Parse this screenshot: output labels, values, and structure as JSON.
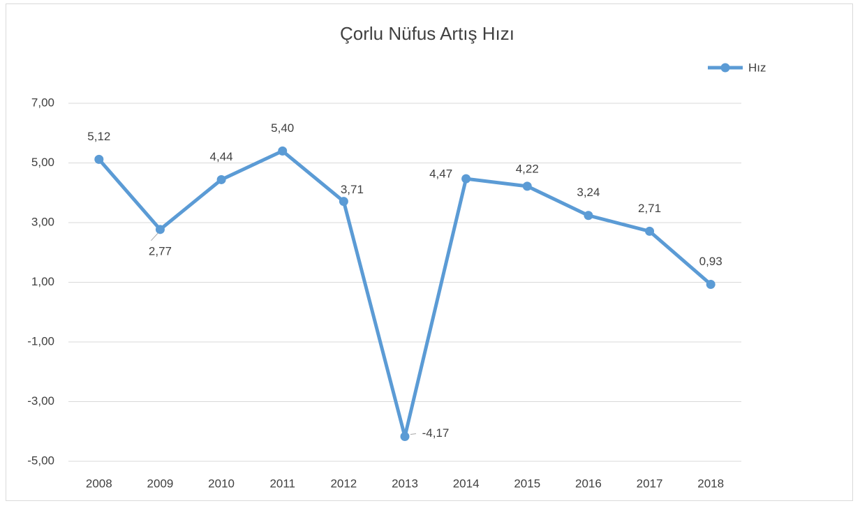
{
  "chart_data": {
    "type": "line",
    "title": "Çorlu Nüfus Artış Hızı",
    "categories": [
      "2008",
      "2009",
      "2010",
      "2011",
      "2012",
      "2013",
      "2014",
      "2015",
      "2016",
      "2017",
      "2018"
    ],
    "series": [
      {
        "name": "Hız",
        "color": "#5b9bd5",
        "values": [
          5.12,
          2.77,
          4.44,
          5.4,
          3.71,
          -4.17,
          4.47,
          4.22,
          3.24,
          2.71,
          0.93
        ],
        "value_labels": [
          "5,12",
          "2,77",
          "4,44",
          "5,40",
          "3,71",
          "-4,17",
          "4,47",
          "4,22",
          "3,24",
          "2,71",
          "0,93"
        ]
      }
    ],
    "ylim": [
      -5,
      7
    ],
    "yticks": [
      {
        "value": -5,
        "label": "-5,00"
      },
      {
        "value": -3,
        "label": "-3,00"
      },
      {
        "value": -1,
        "label": "-1,00"
      },
      {
        "value": 1,
        "label": "1,00"
      },
      {
        "value": 3,
        "label": "3,00"
      },
      {
        "value": 5,
        "label": "5,00"
      },
      {
        "value": 7,
        "label": "7,00"
      }
    ],
    "grid": true,
    "legend": "top-right"
  }
}
